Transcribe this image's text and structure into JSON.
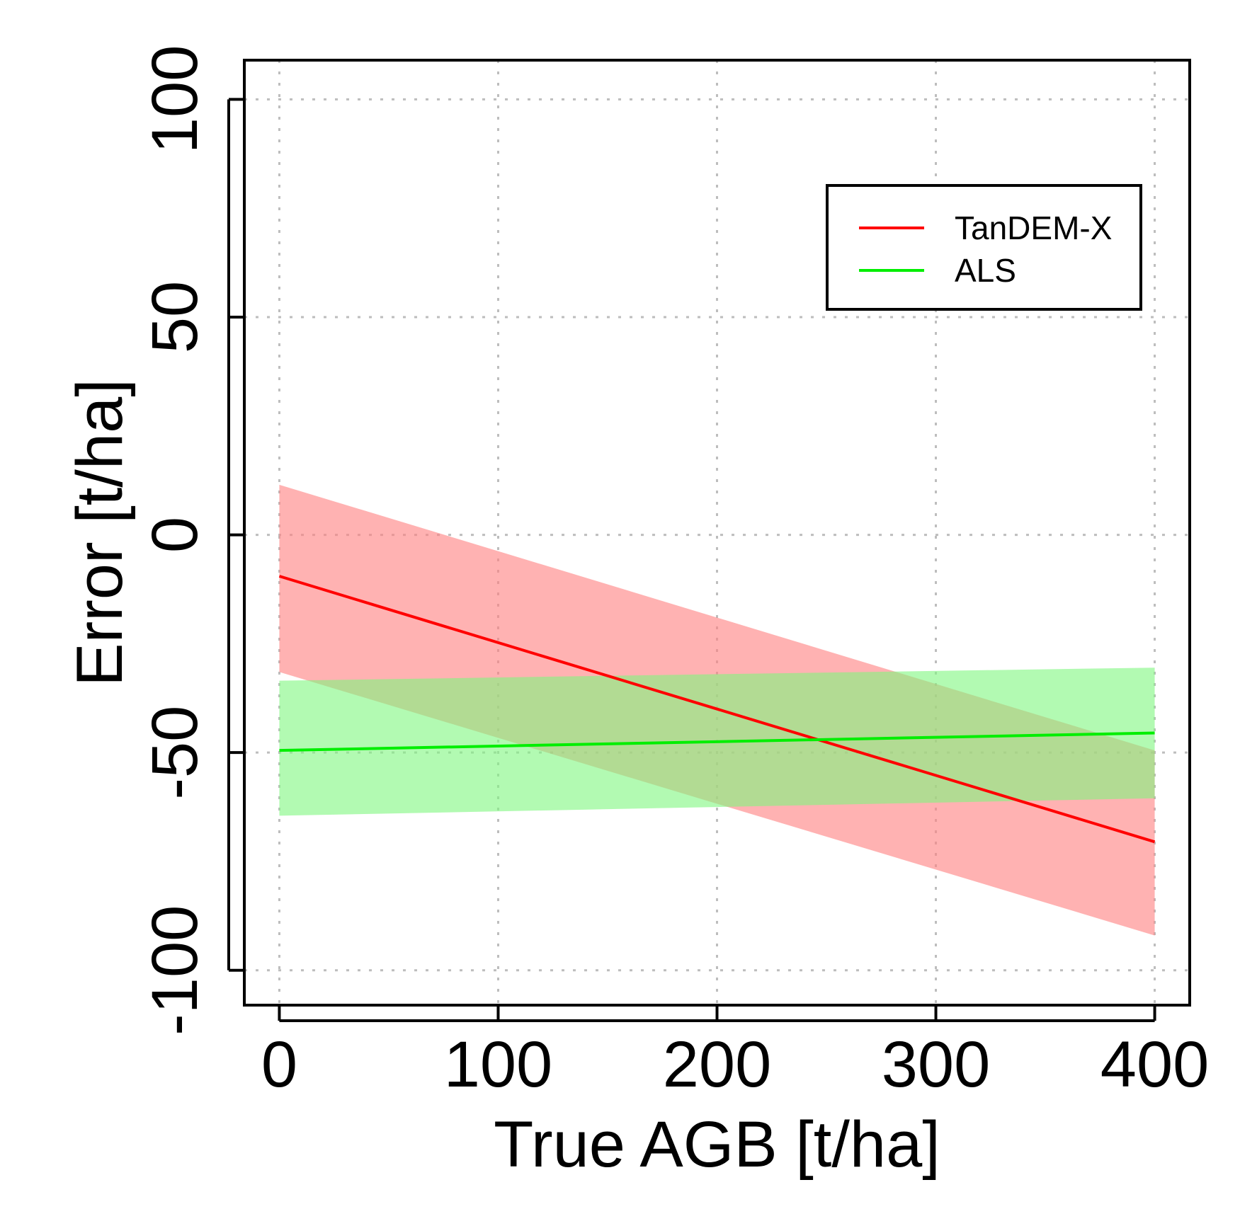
{
  "chart_data": {
    "type": "line",
    "title": "",
    "xlabel": "True AGB [t/ha]",
    "ylabel": "Error [t/ha]",
    "xlim": [
      -16,
      416
    ],
    "ylim": [
      -108,
      109
    ],
    "xticks": [
      0,
      100,
      200,
      300,
      400
    ],
    "yticks": [
      -100,
      -50,
      0,
      50,
      100
    ],
    "xtick_labels": [
      "0",
      "100",
      "200",
      "300",
      "400"
    ],
    "ytick_labels": [
      "-100",
      "-50",
      "0",
      "50",
      "100"
    ],
    "grid": true,
    "legend_position": "top-right",
    "series": [
      {
        "name": "TanDEM-X",
        "color": "#ff0000",
        "band_color": "#ff7f7f",
        "x": [
          0,
          400
        ],
        "y": [
          -9.5,
          -70.5
        ],
        "band_upper": [
          11.5,
          -49.5
        ],
        "band_lower": [
          -31.5,
          -92
        ]
      },
      {
        "name": "ALS",
        "color": "#00ee00",
        "band_color": "#7ff77f",
        "x": [
          0,
          400
        ],
        "y": [
          -49.5,
          -45.5
        ],
        "band_upper": [
          -33.5,
          -30.5
        ],
        "band_lower": [
          -64.5,
          -60.5
        ]
      }
    ]
  }
}
